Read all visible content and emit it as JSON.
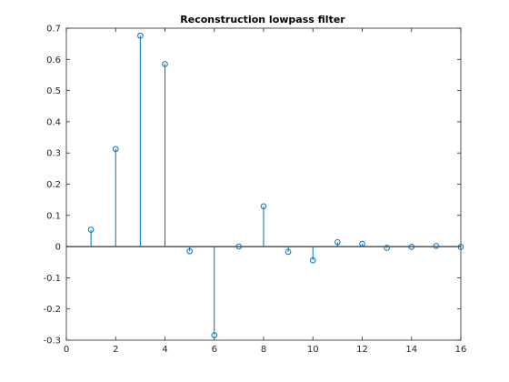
{
  "chart_data": {
    "type": "stem",
    "title": "Reconstruction lowpass filter",
    "xlabel": "",
    "ylabel": "",
    "xlim": [
      0,
      16
    ],
    "ylim": [
      -0.3,
      0.7
    ],
    "x_ticks": [
      "0",
      "2",
      "4",
      "6",
      "8",
      "10",
      "12",
      "14",
      "16"
    ],
    "y_ticks": [
      "-0.3",
      "-0.2",
      "-0.1",
      "0",
      "0.1",
      "0.2",
      "0.3",
      "0.4",
      "0.5",
      "0.6",
      "0.7"
    ],
    "grid": false,
    "color": "#0072bd",
    "series": [
      {
        "x": [
          1,
          2,
          3,
          4,
          5,
          6,
          7,
          8,
          9,
          10,
          11,
          12,
          13,
          14,
          15,
          16
        ],
        "values": [
          0.054,
          0.313,
          0.676,
          0.585,
          -0.015,
          -0.284,
          0.0,
          0.129,
          -0.017,
          -0.044,
          0.014,
          0.009,
          -0.004,
          -0.001,
          0.002,
          -0.001
        ]
      }
    ]
  }
}
